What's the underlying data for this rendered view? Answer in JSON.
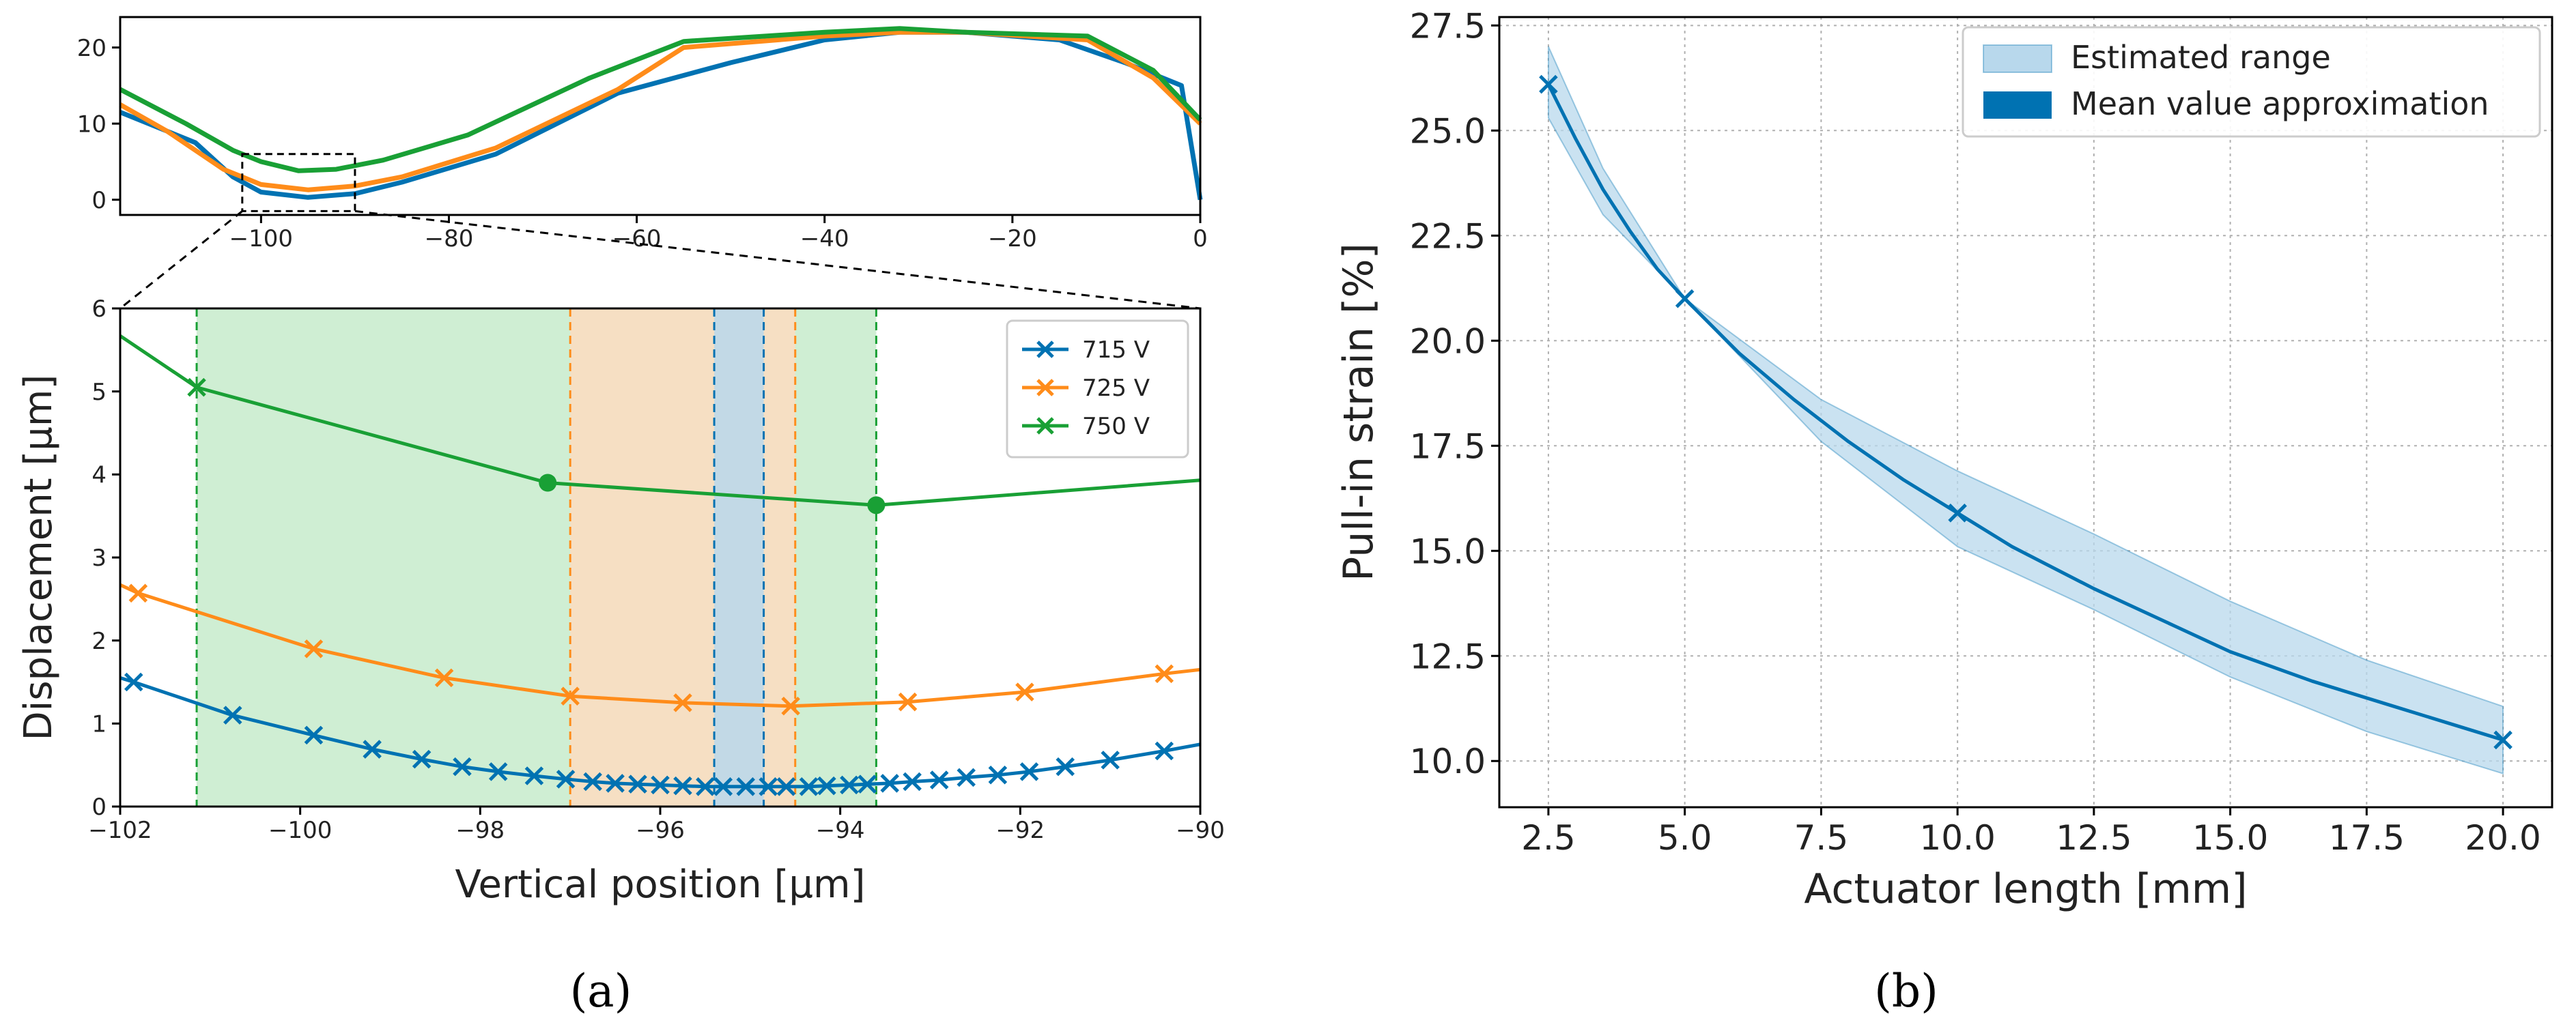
{
  "panel_labels": {
    "a": "(a)",
    "b": "(b)"
  },
  "colors": {
    "blue": "#0072b2",
    "orange": "#ff8c1a",
    "green": "#19a035",
    "blue_fill": "#b8d8ec",
    "orange_fill": "#fddcc0",
    "green_fill": "#c7ebcb",
    "axis": "#000000"
  },
  "chart_data": [
    {
      "id": "a-top",
      "type": "line",
      "title": "",
      "xlabel": "",
      "ylabel": "",
      "xlim": [
        -115,
        0
      ],
      "ylim": [
        -2,
        24
      ],
      "xticks": [
        -100,
        -80,
        -60,
        -40,
        -20,
        0
      ],
      "xtick_labels": [
        "−100",
        "−80",
        "−60",
        "−40",
        "−20",
        "0"
      ],
      "yticks": [
        0,
        10,
        20
      ],
      "ytick_labels": [
        "0",
        "10",
        "20"
      ],
      "zoom_box": {
        "x": [
          -102,
          -90
        ],
        "y": [
          -1.5,
          6
        ]
      },
      "series": [
        {
          "name": "715 V",
          "color": "blue",
          "x": [
            -115,
            -107,
            -103,
            -100,
            -95,
            -90,
            -85,
            -75,
            -62,
            -50,
            -40,
            -32,
            -25,
            -15,
            -8,
            -2,
            0
          ],
          "y": [
            11.5,
            7.5,
            3.0,
            1.0,
            0.3,
            0.8,
            2.3,
            6.0,
            14.0,
            18.0,
            21.0,
            22.0,
            22.0,
            21.0,
            18.0,
            15.0,
            0
          ]
        },
        {
          "name": "725 V",
          "color": "orange",
          "x": [
            -115,
            -110,
            -104,
            -100,
            -95,
            -90,
            -85,
            -75,
            -62,
            -55,
            -40,
            -32,
            -25,
            -12,
            -5,
            0
          ],
          "y": [
            12.5,
            9.0,
            4.0,
            2.0,
            1.3,
            1.8,
            3.0,
            6.8,
            14.5,
            20.0,
            21.5,
            22.0,
            22.0,
            21.0,
            16.0,
            10.0
          ]
        },
        {
          "name": "750 V",
          "color": "green",
          "x": [
            -115,
            -108,
            -103,
            -100,
            -96,
            -92,
            -87,
            -78,
            -65,
            -55,
            -40,
            -32,
            -25,
            -12,
            -5,
            0
          ],
          "y": [
            14.5,
            10.0,
            6.5,
            5.0,
            3.8,
            4.0,
            5.2,
            8.5,
            16.0,
            20.8,
            22.0,
            22.5,
            22.0,
            21.5,
            17.0,
            10.5
          ]
        }
      ]
    },
    {
      "id": "a-bottom",
      "type": "line",
      "title": "",
      "xlabel": "Vertical position [μm]",
      "ylabel": "Displacement [μm]",
      "xlim": [
        -102,
        -90
      ],
      "ylim": [
        0,
        6
      ],
      "xticks": [
        -102,
        -100,
        -98,
        -96,
        -94,
        -92,
        -90
      ],
      "xtick_labels": [
        "−102",
        "−100",
        "−98",
        "−96",
        "−94",
        "−92",
        "−90"
      ],
      "yticks": [
        0,
        1,
        2,
        3,
        4,
        5,
        6
      ],
      "ytick_labels": [
        "0",
        "1",
        "2",
        "3",
        "4",
        "5",
        "6"
      ],
      "shaded_ranges": [
        {
          "series": "750 V",
          "color": "green",
          "x": [
            -101.15,
            -93.6
          ]
        },
        {
          "series": "725 V",
          "color": "orange",
          "x": [
            -97.0,
            -94.5
          ]
        },
        {
          "series": "715 V",
          "color": "blue",
          "x": [
            -95.4,
            -94.85
          ]
        }
      ],
      "series": [
        {
          "name": "715 V",
          "color": "blue",
          "x": [
            -102,
            -101.85,
            -100.75,
            -99.85,
            -99.2,
            -98.65,
            -98.2,
            -97.8,
            -97.4,
            -97.05,
            -96.75,
            -96.5,
            -96.25,
            -96.0,
            -95.75,
            -95.5,
            -95.3,
            -95.05,
            -94.8,
            -94.6,
            -94.35,
            -94.15,
            -93.9,
            -93.7,
            -93.45,
            -93.2,
            -92.9,
            -92.6,
            -92.25,
            -91.9,
            -91.5,
            -91.0,
            -90.4,
            -90.0
          ],
          "y": [
            1.55,
            1.5,
            1.1,
            0.86,
            0.69,
            0.57,
            0.48,
            0.42,
            0.37,
            0.33,
            0.3,
            0.28,
            0.27,
            0.26,
            0.25,
            0.24,
            0.24,
            0.24,
            0.24,
            0.24,
            0.24,
            0.25,
            0.26,
            0.27,
            0.28,
            0.3,
            0.32,
            0.35,
            0.38,
            0.42,
            0.48,
            0.56,
            0.67,
            0.75
          ],
          "markers_from": 1,
          "markers_to": 32
        },
        {
          "name": "725 V",
          "color": "orange",
          "x": [
            -102,
            -101.8,
            -99.85,
            -98.4,
            -97.0,
            -95.75,
            -94.55,
            -93.25,
            -91.95,
            -90.4,
            -90.0
          ],
          "y": [
            2.67,
            2.57,
            1.9,
            1.55,
            1.33,
            1.25,
            1.21,
            1.26,
            1.38,
            1.6,
            1.65
          ],
          "markers_from": 1,
          "markers_to": 9
        },
        {
          "name": "750 V",
          "color": "green",
          "x": [
            -102,
            -101.15,
            -97.25,
            -93.6,
            -90.0
          ],
          "y": [
            5.67,
            5.05,
            3.9,
            3.63,
            3.93
          ],
          "x_markers": [
            -101.15
          ],
          "dot_markers": [
            -97.25,
            -93.6
          ]
        }
      ],
      "legend": {
        "location": "upper right",
        "entries": [
          "715 V",
          "725 V",
          "750 V"
        ]
      }
    },
    {
      "id": "b",
      "type": "line",
      "title": "",
      "xlabel": "Actuator length [mm]",
      "ylabel": "Pull-in strain [%]",
      "xlim": [
        1.6,
        20.9
      ],
      "ylim": [
        8.9,
        27.7
      ],
      "grid": true,
      "xticks": [
        2.5,
        5.0,
        7.5,
        10.0,
        12.5,
        15.0,
        17.5,
        20.0
      ],
      "xtick_labels": [
        "2.5",
        "5.0",
        "7.5",
        "10.0",
        "12.5",
        "15.0",
        "17.5",
        "20.0"
      ],
      "yticks": [
        10.0,
        12.5,
        15.0,
        17.5,
        20.0,
        22.5,
        25.0,
        27.5
      ],
      "ytick_labels": [
        "10.0",
        "12.5",
        "15.0",
        "17.5",
        "20.0",
        "22.5",
        "25.0",
        "27.5"
      ],
      "points": {
        "x": [
          2.5,
          5.0,
          10.0,
          20.0
        ],
        "y": [
          26.1,
          21.0,
          15.9,
          10.5
        ]
      },
      "mean_curve": {
        "x": [
          2.5,
          3.0,
          3.5,
          4.0,
          4.5,
          5.0,
          6.0,
          7.0,
          8.0,
          9.0,
          10.0,
          11.0,
          12.5,
          14.0,
          15.0,
          16.5,
          18.0,
          19.0,
          20.0
        ],
        "y": [
          26.1,
          24.8,
          23.6,
          22.6,
          21.7,
          21.0,
          19.7,
          18.6,
          17.6,
          16.7,
          15.9,
          15.1,
          14.1,
          13.2,
          12.6,
          11.9,
          11.3,
          10.9,
          10.5
        ]
      },
      "range_upper": {
        "x": [
          2.5,
          3.5,
          5.0,
          7.5,
          10.0,
          12.5,
          15.0,
          17.5,
          20.0
        ],
        "y": [
          27.0,
          24.1,
          21.0,
          18.6,
          16.9,
          15.4,
          13.8,
          12.4,
          11.3
        ]
      },
      "range_lower": {
        "x": [
          2.5,
          3.5,
          5.0,
          7.5,
          10.0,
          12.5,
          15.0,
          17.5,
          20.0
        ],
        "y": [
          25.3,
          23.0,
          21.0,
          17.6,
          15.1,
          13.6,
          12.0,
          10.7,
          9.7
        ]
      },
      "legend": {
        "location": "upper right",
        "entries": [
          "Estimated range",
          "Mean value approximation"
        ]
      }
    }
  ]
}
